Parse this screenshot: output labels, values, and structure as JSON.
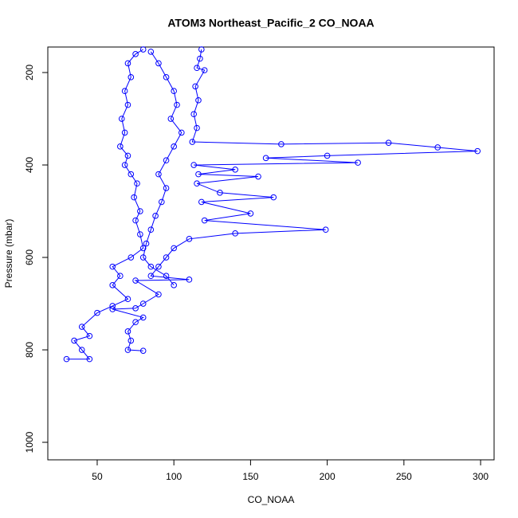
{
  "chart_data": {
    "type": "line",
    "title": "ATOM3 Northeast_Pacific_2 CO_NOAA",
    "x_label": "CO_NOAA",
    "y_label": "Pressure (mbar)",
    "color": "blue",
    "marker": "open-circle",
    "y_reversed": true,
    "xlim": [
      17.8,
      308.8
    ],
    "ylim": [
      1037.9,
      144.8
    ],
    "xticks": [
      50,
      100,
      150,
      200,
      250,
      300
    ],
    "yticks": [
      200,
      400,
      600,
      800,
      1000
    ],
    "x": [
      118,
      117,
      115,
      120,
      114,
      116,
      113,
      115,
      112,
      170,
      240,
      272,
      298,
      200,
      160,
      220,
      113,
      140,
      116,
      155,
      115,
      130,
      165,
      118,
      150,
      120,
      199,
      140,
      110,
      100,
      95,
      90,
      85,
      110,
      75,
      90,
      80,
      75,
      60,
      80,
      75,
      70,
      72,
      70,
      80,
      null,
      30,
      45,
      40,
      35,
      45,
      40,
      50,
      60,
      70,
      60,
      65,
      60,
      72,
      80,
      78,
      75,
      78,
      74,
      76,
      72,
      68,
      70,
      65,
      68,
      66,
      70,
      68,
      72,
      70,
      75,
      80,
      null,
      85,
      90,
      95,
      100,
      102,
      98,
      105,
      100,
      95,
      90,
      95,
      92,
      88,
      85,
      82,
      80,
      85,
      95,
      100
    ],
    "values": [
      150,
      170,
      190,
      195,
      230,
      260,
      290,
      320,
      350,
      355,
      352,
      362,
      370,
      380,
      385,
      395,
      400,
      410,
      420,
      425,
      440,
      460,
      470,
      480,
      505,
      520,
      540,
      548,
      560,
      580,
      600,
      620,
      640,
      648,
      650,
      680,
      700,
      710,
      712,
      730,
      740,
      760,
      780,
      800,
      802,
      null,
      820,
      820,
      800,
      780,
      770,
      750,
      720,
      705,
      690,
      660,
      640,
      620,
      600,
      580,
      550,
      520,
      500,
      470,
      440,
      420,
      400,
      380,
      360,
      330,
      300,
      270,
      240,
      210,
      180,
      160,
      150,
      null,
      155,
      180,
      210,
      240,
      270,
      300,
      330,
      360,
      390,
      420,
      450,
      480,
      510,
      540,
      570,
      600,
      620,
      640,
      660
    ]
  }
}
